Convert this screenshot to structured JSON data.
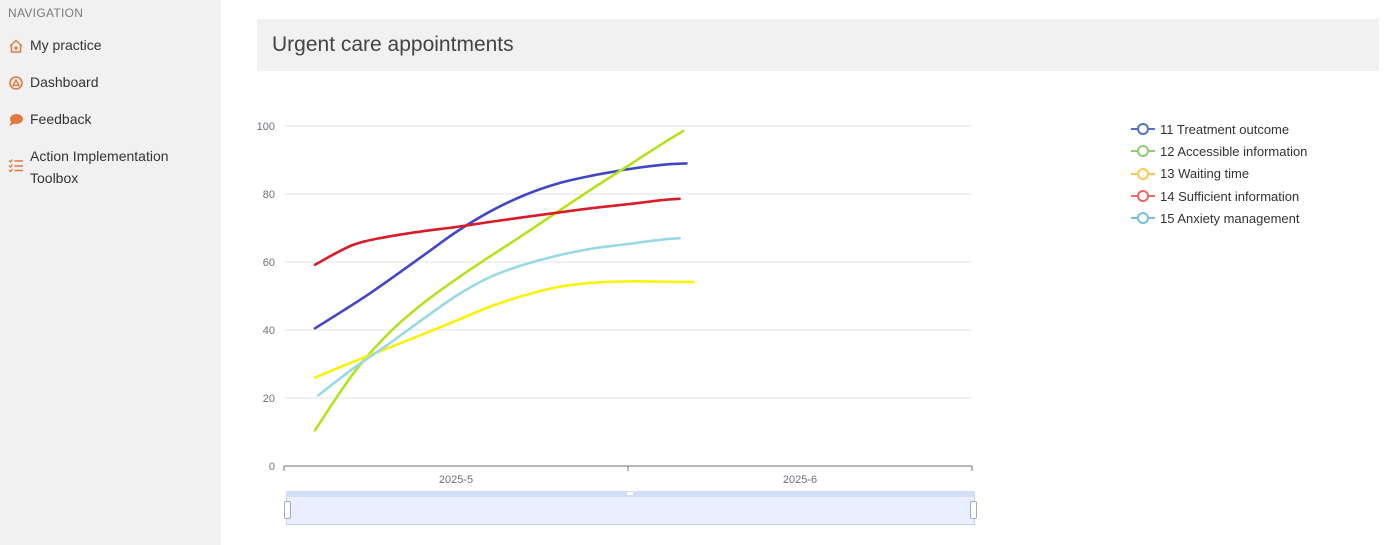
{
  "sidebar": {
    "heading": "NAVIGATION",
    "items": [
      {
        "label": "My practice",
        "icon": "house-icon"
      },
      {
        "label": "Dashboard",
        "icon": "dashboard-icon"
      },
      {
        "label": "Feedback",
        "icon": "speech-bubble-icon"
      },
      {
        "label": "Action Implementation Toolbox",
        "icon": "checklist-icon"
      }
    ]
  },
  "main": {
    "title": "Urgent care appointments"
  },
  "colors": {
    "accent": "#e07a3f",
    "sidebar_bg": "#f1f1f1"
  },
  "chart_data": {
    "type": "line",
    "smooth": true,
    "x": [
      "2025-5",
      "2025-6"
    ],
    "ylim": [
      0,
      100
    ],
    "yticks": [
      0,
      20,
      40,
      60,
      80,
      100
    ],
    "grid": true,
    "legend_position": "top-right",
    "series": [
      {
        "name": "11 Treatment outcome",
        "color": "#4147c8",
        "legend_color": "#5470c6",
        "points": [
          [
            0.09,
            40.5
          ],
          [
            0.25,
            50.8
          ],
          [
            0.42,
            63
          ],
          [
            0.5,
            68.8
          ],
          [
            0.6,
            74.9
          ],
          [
            0.7,
            79.7
          ],
          [
            0.8,
            83.2
          ],
          [
            0.9,
            85.5
          ],
          [
            0.96,
            86.6
          ],
          [
            1.0,
            87.3
          ],
          [
            1.1,
            88.6
          ],
          [
            1.17,
            89
          ]
        ]
      },
      {
        "name": "12 Accessible information",
        "color": "#b4e31d",
        "legend_color": "#91cc75",
        "points": [
          [
            0.09,
            10.5
          ],
          [
            0.2,
            27
          ],
          [
            0.3,
            38.6
          ],
          [
            0.4,
            47.5
          ],
          [
            0.5,
            54.9
          ],
          [
            0.6,
            61.7
          ],
          [
            0.7,
            68.3
          ],
          [
            0.8,
            75.1
          ],
          [
            0.9,
            81.8
          ],
          [
            1.0,
            88.3
          ],
          [
            1.1,
            94.8
          ],
          [
            1.16,
            98.5
          ]
        ]
      },
      {
        "name": "13 Waiting time",
        "color": "#f8f308",
        "legend_color": "#fac858",
        "points": [
          [
            0.09,
            26
          ],
          [
            0.2,
            30.6
          ],
          [
            0.3,
            34.6
          ],
          [
            0.4,
            38.6
          ],
          [
            0.5,
            42.7
          ],
          [
            0.6,
            46.9
          ],
          [
            0.7,
            50.2
          ],
          [
            0.8,
            52.7
          ],
          [
            0.9,
            53.9
          ],
          [
            1.0,
            54.3
          ],
          [
            1.1,
            54.2
          ],
          [
            1.19,
            54.1
          ]
        ]
      },
      {
        "name": "14 Sufficient information",
        "color": "#d81c29",
        "legend_color": "#ee6666",
        "points": [
          [
            0.09,
            59.2
          ],
          [
            0.2,
            65
          ],
          [
            0.3,
            67.4
          ],
          [
            0.4,
            69
          ],
          [
            0.5,
            70.3
          ],
          [
            0.6,
            71.8
          ],
          [
            0.7,
            73.2
          ],
          [
            0.8,
            74.6
          ],
          [
            0.9,
            75.9
          ],
          [
            1.0,
            77
          ],
          [
            1.1,
            78.2
          ],
          [
            1.15,
            78.6
          ]
        ]
      },
      {
        "name": "15 Anxiety management",
        "color": "#98d9e3",
        "legend_color": "#73c0de",
        "points": [
          [
            0.1,
            20.8
          ],
          [
            0.2,
            28.6
          ],
          [
            0.3,
            35.6
          ],
          [
            0.4,
            42.9
          ],
          [
            0.5,
            50
          ],
          [
            0.6,
            55.6
          ],
          [
            0.7,
            59.3
          ],
          [
            0.8,
            62
          ],
          [
            0.9,
            64
          ],
          [
            1.0,
            65.3
          ],
          [
            1.1,
            66.6
          ],
          [
            1.15,
            67
          ]
        ]
      }
    ]
  }
}
